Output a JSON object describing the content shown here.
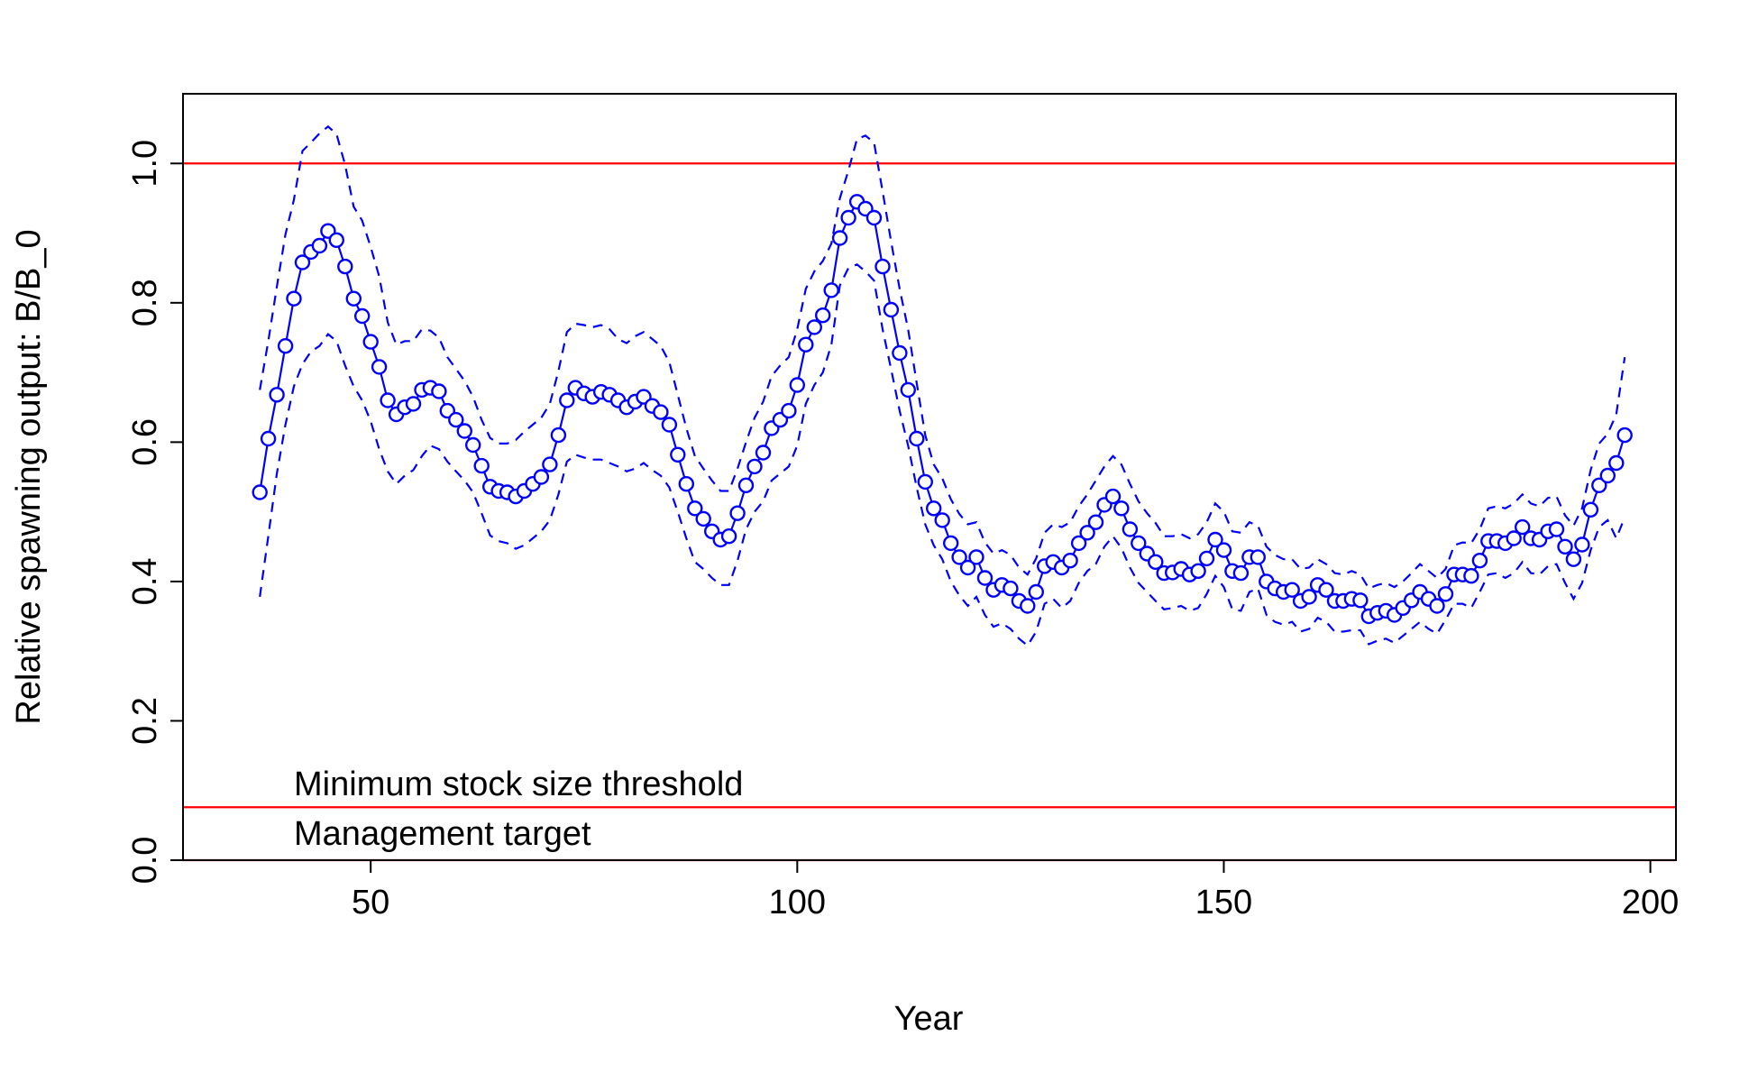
{
  "chart_data": {
    "type": "line",
    "title": "",
    "xlabel": "Year",
    "ylabel": "Relative spawning output: B/B_0",
    "xlim": [
      28,
      203
    ],
    "ylim": [
      0.0,
      1.1
    ],
    "x_ticks": [
      50,
      100,
      150,
      200
    ],
    "y_ticks": [
      0.0,
      0.2,
      0.4,
      0.6,
      0.8,
      1.0
    ],
    "x_tick_labels": [
      "50",
      "100",
      "150",
      "200"
    ],
    "y_tick_labels": [
      "0.0",
      "0.2",
      "0.4",
      "0.6",
      "0.8",
      "1.0"
    ],
    "grid": false,
    "legend": "none",
    "reference_lines": [
      {
        "y": 1.0,
        "color": "#ff0000"
      },
      {
        "y": 0.076,
        "color": "#ff0000"
      },
      {
        "y": 0.0,
        "color": "#ff0000"
      }
    ],
    "annotations": [
      {
        "text": "Minimum stock size threshold",
        "x": 41,
        "y": 0.093
      },
      {
        "text": "Management target",
        "x": 41,
        "y": 0.022
      }
    ],
    "series_color": "#0000ff",
    "x_start": 37,
    "estimate": [
      0.528,
      0.605,
      0.668,
      0.738,
      0.806,
      0.858,
      0.873,
      0.882,
      0.903,
      0.89,
      0.852,
      0.806,
      0.781,
      0.744,
      0.708,
      0.66,
      0.64,
      0.65,
      0.655,
      0.675,
      0.678,
      0.673,
      0.645,
      0.632,
      0.616,
      0.596,
      0.566,
      0.536,
      0.53,
      0.528,
      0.522,
      0.53,
      0.54,
      0.55,
      0.568,
      0.61,
      0.66,
      0.678,
      0.67,
      0.665,
      0.672,
      0.668,
      0.66,
      0.65,
      0.658,
      0.665,
      0.652,
      0.643,
      0.625,
      0.582,
      0.54,
      0.505,
      0.49,
      0.472,
      0.46,
      0.465,
      0.498,
      0.538,
      0.565,
      0.585,
      0.62,
      0.632,
      0.645,
      0.682,
      0.74,
      0.765,
      0.782,
      0.818,
      0.893,
      0.922,
      0.945,
      0.935,
      0.922,
      0.852,
      0.79,
      0.728,
      0.675,
      0.605,
      0.543,
      0.505,
      0.488,
      0.455,
      0.435,
      0.42,
      0.435,
      0.405,
      0.388,
      0.395,
      0.39,
      0.372,
      0.365,
      0.385,
      0.422,
      0.428,
      0.42,
      0.43,
      0.455,
      0.47,
      0.485,
      0.51,
      0.522,
      0.505,
      0.475,
      0.455,
      0.44,
      0.428,
      0.412,
      0.413,
      0.418,
      0.41,
      0.415,
      0.433,
      0.46,
      0.445,
      0.415,
      0.412,
      0.435,
      0.435,
      0.4,
      0.39,
      0.385,
      0.388,
      0.372,
      0.378,
      0.395,
      0.388,
      0.372,
      0.372,
      0.375,
      0.373,
      0.35,
      0.355,
      0.358,
      0.352,
      0.362,
      0.373,
      0.385,
      0.375,
      0.365,
      0.382,
      0.41,
      0.41,
      0.408,
      0.43,
      0.458,
      0.458,
      0.455,
      0.462,
      0.478,
      0.462,
      0.46,
      0.472,
      0.475,
      0.45,
      0.432,
      0.453,
      0.503,
      0.538,
      0.552,
      0.57,
      0.61
    ],
    "upper_ci": [
      0.675,
      0.745,
      0.823,
      0.898,
      0.948,
      1.018,
      1.03,
      1.043,
      1.053,
      1.042,
      0.998,
      0.938,
      0.918,
      0.88,
      0.838,
      0.772,
      0.74,
      0.745,
      0.745,
      0.762,
      0.76,
      0.75,
      0.722,
      0.705,
      0.688,
      0.665,
      0.632,
      0.606,
      0.598,
      0.598,
      0.603,
      0.615,
      0.625,
      0.635,
      0.655,
      0.702,
      0.758,
      0.77,
      0.768,
      0.765,
      0.768,
      0.762,
      0.748,
      0.742,
      0.752,
      0.758,
      0.748,
      0.738,
      0.715,
      0.668,
      0.62,
      0.58,
      0.562,
      0.545,
      0.53,
      0.53,
      0.562,
      0.6,
      0.635,
      0.658,
      0.695,
      0.71,
      0.722,
      0.762,
      0.82,
      0.845,
      0.86,
      0.885,
      0.95,
      0.99,
      1.035,
      1.04,
      1.03,
      0.96,
      0.888,
      0.82,
      0.762,
      0.685,
      0.61,
      0.568,
      0.548,
      0.518,
      0.497,
      0.482,
      0.485,
      0.456,
      0.44,
      0.445,
      0.438,
      0.42,
      0.41,
      0.433,
      0.47,
      0.482,
      0.478,
      0.485,
      0.508,
      0.525,
      0.545,
      0.565,
      0.58,
      0.568,
      0.54,
      0.515,
      0.498,
      0.484,
      0.465,
      0.465,
      0.468,
      0.462,
      0.468,
      0.485,
      0.512,
      0.5,
      0.472,
      0.47,
      0.485,
      0.48,
      0.45,
      0.438,
      0.432,
      0.432,
      0.418,
      0.42,
      0.432,
      0.425,
      0.412,
      0.41,
      0.415,
      0.41,
      0.39,
      0.395,
      0.398,
      0.392,
      0.4,
      0.412,
      0.425,
      0.415,
      0.405,
      0.418,
      0.452,
      0.456,
      0.455,
      0.475,
      0.505,
      0.508,
      0.505,
      0.512,
      0.525,
      0.512,
      0.508,
      0.52,
      0.522,
      0.495,
      0.48,
      0.505,
      0.56,
      0.598,
      0.612,
      0.64,
      0.722
    ],
    "lower_ci": [
      0.378,
      0.465,
      0.555,
      0.625,
      0.68,
      0.712,
      0.73,
      0.738,
      0.755,
      0.745,
      0.71,
      0.68,
      0.66,
      0.63,
      0.59,
      0.558,
      0.54,
      0.552,
      0.56,
      0.58,
      0.595,
      0.59,
      0.572,
      0.558,
      0.545,
      0.528,
      0.498,
      0.466,
      0.458,
      0.455,
      0.447,
      0.452,
      0.462,
      0.472,
      0.488,
      0.525,
      0.572,
      0.582,
      0.578,
      0.575,
      0.575,
      0.57,
      0.565,
      0.558,
      0.562,
      0.57,
      0.56,
      0.552,
      0.535,
      0.5,
      0.462,
      0.428,
      0.418,
      0.405,
      0.395,
      0.395,
      0.43,
      0.475,
      0.5,
      0.515,
      0.545,
      0.555,
      0.565,
      0.595,
      0.655,
      0.682,
      0.7,
      0.74,
      0.825,
      0.85,
      0.855,
      0.845,
      0.832,
      0.762,
      0.705,
      0.645,
      0.595,
      0.535,
      0.482,
      0.452,
      0.432,
      0.4,
      0.38,
      0.365,
      0.378,
      0.352,
      0.335,
      0.34,
      0.332,
      0.318,
      0.308,
      0.328,
      0.368,
      0.375,
      0.362,
      0.372,
      0.398,
      0.415,
      0.425,
      0.45,
      0.465,
      0.448,
      0.42,
      0.398,
      0.385,
      0.372,
      0.36,
      0.362,
      0.365,
      0.358,
      0.362,
      0.382,
      0.408,
      0.392,
      0.36,
      0.358,
      0.385,
      0.39,
      0.352,
      0.342,
      0.338,
      0.342,
      0.328,
      0.332,
      0.348,
      0.342,
      0.328,
      0.328,
      0.33,
      0.33,
      0.31,
      0.315,
      0.318,
      0.312,
      0.322,
      0.332,
      0.342,
      0.332,
      0.325,
      0.345,
      0.368,
      0.368,
      0.362,
      0.385,
      0.41,
      0.412,
      0.405,
      0.412,
      0.428,
      0.412,
      0.41,
      0.422,
      0.425,
      0.398,
      0.375,
      0.398,
      0.445,
      0.478,
      0.488,
      0.462,
      0.492
    ]
  }
}
